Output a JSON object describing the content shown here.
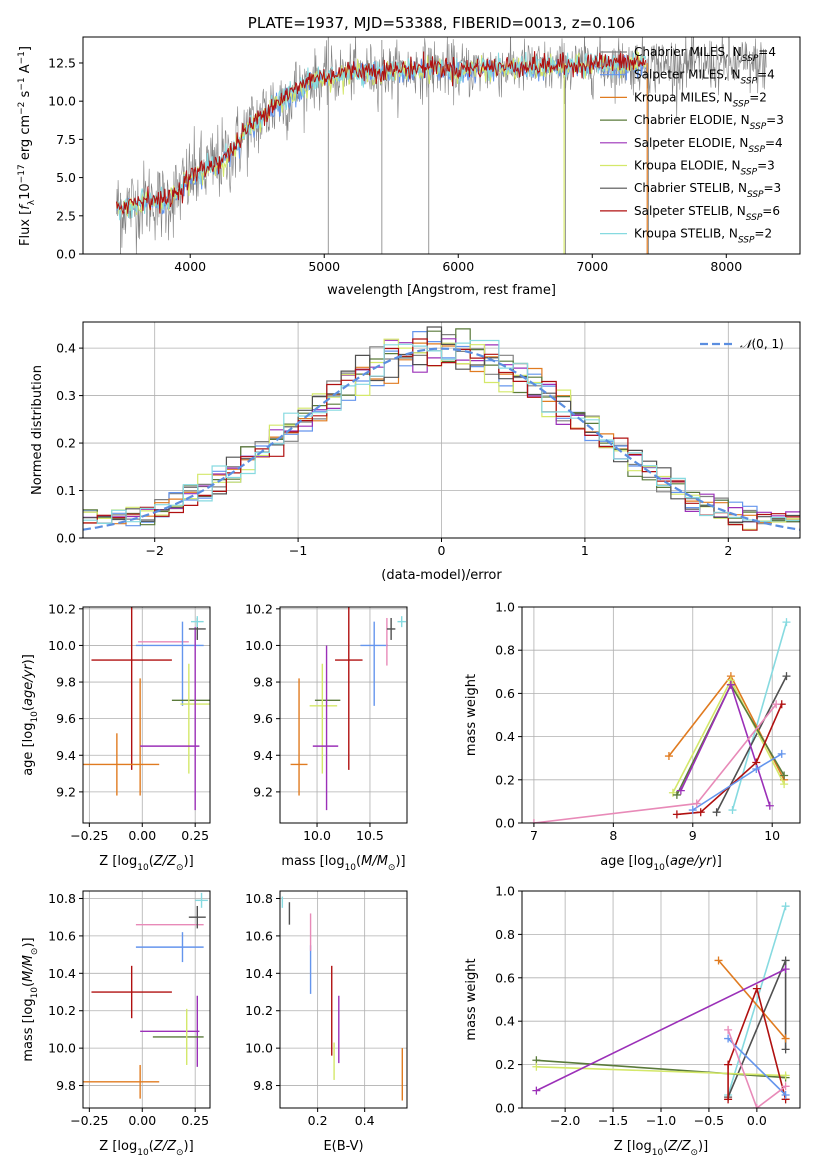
{
  "colors": {
    "chabrier_miles": "#808080",
    "salpeter_miles": "#6495ed",
    "kroupa_miles": "#e07b20",
    "chabrier_elodie": "#5a7a3a",
    "salpeter_elodie": "#9b30b8",
    "kroupa_elodie": "#d4e86a",
    "chabrier_stelib": "#505050",
    "salpeter_stelib": "#b01010",
    "kroupa_stelib": "#86dae0",
    "extra_pink": "#e88ab8",
    "normal_curve": "#5b8ee0"
  },
  "chart_data": [
    {
      "type": "line",
      "title": "PLATE=1937, MJD=53388, FIBERID=0013, z=0.106",
      "xlabel": "wavelength [Angstrom, rest frame]",
      "ylabel": "Flux [f_λ10^-17 erg cm^-2 s^-1 A^-1]",
      "xlim": [
        3200,
        8550
      ],
      "ylim": [
        0,
        14.2
      ],
      "xticks": [
        4000,
        5000,
        6000,
        7000,
        8000
      ],
      "yticks": [
        0.0,
        2.5,
        5.0,
        7.5,
        10.0,
        12.5
      ],
      "series": [
        {
          "name": "Chabrier MILES, N_SSP=4",
          "color": "#808080"
        },
        {
          "name": "Salpeter MILES, N_SSP=4",
          "color": "#6495ed"
        },
        {
          "name": "Kroupa MILES, N_SSP=2",
          "color": "#e07b20"
        },
        {
          "name": "Chabrier ELODIE, N_SSP=3",
          "color": "#5a7a3a"
        },
        {
          "name": "Salpeter ELODIE, N_SSP=4",
          "color": "#9b30b8"
        },
        {
          "name": "Kroupa ELODIE, N_SSP=3",
          "color": "#d4e86a"
        },
        {
          "name": "Chabrier STELIB, N_SSP=3",
          "color": "#505050"
        },
        {
          "name": "Salpeter STELIB, N_SSP=6",
          "color": "#b01010"
        },
        {
          "name": "Kroupa STELIB, N_SSP=2",
          "color": "#86dae0"
        }
      ],
      "continuum": {
        "x": [
          3450,
          3550,
          3700,
          3800,
          3900,
          4000,
          4100,
          4200,
          4300,
          4400,
          4600,
          4800,
          4900,
          5000,
          5200,
          5500,
          5800,
          6000,
          6200,
          6500,
          6800,
          7000,
          7300
        ],
        "y": [
          3.0,
          3.2,
          3.6,
          3.3,
          3.9,
          5.0,
          5.4,
          5.9,
          6.5,
          7.8,
          9.6,
          10.7,
          11.4,
          11.5,
          11.9,
          11.9,
          12.2,
          12.0,
          12.1,
          12.2,
          12.2,
          12.4,
          12.4
        ]
      },
      "data_x_range": [
        3450,
        8300
      ]
    },
    {
      "type": "line",
      "xlabel": "(data-model)/error",
      "ylabel": "Normed distribution",
      "xlim": [
        -2.5,
        2.5
      ],
      "ylim": [
        0,
        0.455
      ],
      "xticks": [
        -2,
        -1,
        0,
        1,
        2
      ],
      "yticks": [
        0.0,
        0.1,
        0.2,
        0.3,
        0.4
      ],
      "legend": "N(0,1)",
      "legend_position": "top-right",
      "bin_width": 0.1
    },
    {
      "type": "scatter",
      "xlabel": "Z [log10(Z/Z☉)]",
      "ylabel": "age [log10(age/yr)]",
      "xlim": [
        -0.28,
        0.32
      ],
      "ylim": [
        9.03,
        10.21
      ],
      "xticks": [
        -0.25,
        0.0,
        0.25
      ],
      "yticks": [
        9.2,
        9.4,
        9.6,
        9.8,
        10.0,
        10.2
      ],
      "errorbars": [
        {
          "x": -0.05,
          "y": 9.92,
          "xerr": 0.19,
          "yerr": 0.6,
          "color": "#b01010"
        },
        {
          "x": -0.12,
          "y": 9.35,
          "xerr": 0.2,
          "yerr": 0.17,
          "color": "#e07b20"
        },
        {
          "x": -0.01,
          "y": 9.5,
          "xerr": 0.0,
          "yerr": 0.32,
          "color": "#e07b20"
        },
        {
          "x": 0.1,
          "y": 10.02,
          "xerr": 0.12,
          "yerr": 0.0,
          "color": "#e88ab8"
        },
        {
          "x": 0.13,
          "y": 10.0,
          "xerr": 0.16,
          "yerr": 0.0,
          "color": "#6495ed"
        },
        {
          "x": 0.19,
          "y": 9.9,
          "xerr": 0.0,
          "yerr": 0.23,
          "color": "#6495ed"
        },
        {
          "x": 0.24,
          "y": 9.7,
          "xerr": 0.1,
          "yerr": 0.0,
          "color": "#5a7a3a"
        },
        {
          "x": 0.25,
          "y": 9.68,
          "xerr": 0.07,
          "yerr": 0.0,
          "color": "#d4e86a"
        },
        {
          "x": 0.22,
          "y": 9.6,
          "xerr": 0.0,
          "yerr": 0.3,
          "color": "#d4e86a"
        },
        {
          "x": 0.13,
          "y": 9.45,
          "xerr": 0.14,
          "yerr": 0.0,
          "color": "#9b30b8"
        },
        {
          "x": 0.25,
          "y": 9.6,
          "xerr": 0.0,
          "yerr": 0.5,
          "color": "#9b30b8"
        },
        {
          "x": 0.26,
          "y": 10.09,
          "xerr": 0.04,
          "yerr": 0.06,
          "color": "#505050"
        },
        {
          "x": 0.26,
          "y": 10.13,
          "xerr": 0.03,
          "yerr": 0.03,
          "color": "#86dae0"
        }
      ]
    },
    {
      "type": "scatter",
      "xlabel": "mass [log10(M/M☉)]",
      "xlim": [
        9.65,
        10.85
      ],
      "ylim": [
        9.03,
        10.21
      ],
      "xticks": [
        10.0,
        10.5
      ],
      "yticks": [
        9.2,
        9.4,
        9.6,
        9.8,
        10.0,
        10.2
      ],
      "errorbars": [
        {
          "x": 10.3,
          "y": 9.92,
          "xerr": 0.13,
          "yerr": 0.6,
          "color": "#b01010"
        },
        {
          "x": 9.83,
          "y": 9.35,
          "xerr": 0.08,
          "yerr": 0.0,
          "color": "#e07b20"
        },
        {
          "x": 9.83,
          "y": 9.5,
          "xerr": 0.0,
          "yerr": 0.32,
          "color": "#e07b20"
        },
        {
          "x": 10.1,
          "y": 9.7,
          "xerr": 0.12,
          "yerr": 0.0,
          "color": "#5a7a3a"
        },
        {
          "x": 10.06,
          "y": 9.67,
          "xerr": 0.13,
          "yerr": 0.0,
          "color": "#d4e86a"
        },
        {
          "x": 10.05,
          "y": 9.6,
          "xerr": 0.0,
          "yerr": 0.3,
          "color": "#d4e86a"
        },
        {
          "x": 10.08,
          "y": 9.45,
          "xerr": 0.12,
          "yerr": 0.0,
          "color": "#9b30b8"
        },
        {
          "x": 10.09,
          "y": 9.55,
          "xerr": 0.0,
          "yerr": 0.45,
          "color": "#9b30b8"
        },
        {
          "x": 10.54,
          "y": 10.0,
          "xerr": 0.13,
          "yerr": 0.0,
          "color": "#6495ed"
        },
        {
          "x": 10.54,
          "y": 9.9,
          "xerr": 0.0,
          "yerr": 0.23,
          "color": "#6495ed"
        },
        {
          "x": 10.66,
          "y": 10.02,
          "xerr": 0.0,
          "yerr": 0.13,
          "color": "#e88ab8"
        },
        {
          "x": 10.7,
          "y": 10.09,
          "xerr": 0.04,
          "yerr": 0.06,
          "color": "#505050"
        },
        {
          "x": 10.8,
          "y": 10.13,
          "xerr": 0.04,
          "yerr": 0.03,
          "color": "#86dae0"
        }
      ]
    },
    {
      "type": "line",
      "xlabel": "age [log10(age/yr)]",
      "ylabel": "mass weight",
      "xlim": [
        6.85,
        10.35
      ],
      "ylim": [
        0,
        1.0
      ],
      "xticks": [
        7,
        8,
        9,
        10
      ],
      "yticks": [
        0.0,
        0.2,
        0.4,
        0.6,
        0.8,
        1.0
      ],
      "series": [
        {
          "color": "#86dae0",
          "x": [
            9.5,
            10.18
          ],
          "y": [
            0.06,
            0.93
          ]
        },
        {
          "color": "#505050",
          "x": [
            9.3,
            10.18
          ],
          "y": [
            0.05,
            0.68
          ]
        },
        {
          "color": "#e07b20",
          "x": [
            8.7,
            9.48,
            10.15
          ],
          "y": [
            0.31,
            0.68,
            0.2
          ]
        },
        {
          "color": "#d4e86a",
          "x": [
            8.75,
            9.48,
            10.15
          ],
          "y": [
            0.14,
            0.66,
            0.18
          ]
        },
        {
          "color": "#5a7a3a",
          "x": [
            8.8,
            9.48,
            10.15
          ],
          "y": [
            0.13,
            0.64,
            0.22
          ]
        },
        {
          "color": "#9b30b8",
          "x": [
            8.85,
            9.48,
            9.97
          ],
          "y": [
            0.15,
            0.64,
            0.08
          ]
        },
        {
          "color": "#b01010",
          "x": [
            8.8,
            9.1,
            9.8,
            10.12
          ],
          "y": [
            0.04,
            0.05,
            0.28,
            0.55
          ]
        },
        {
          "color": "#6495ed",
          "x": [
            9.0,
            9.8,
            10.12
          ],
          "y": [
            0.06,
            0.25,
            0.32
          ]
        },
        {
          "color": "#e88ab8",
          "x": [
            7.0,
            9.05,
            10.05
          ],
          "y": [
            0.0,
            0.09,
            0.55
          ]
        }
      ]
    },
    {
      "type": "scatter",
      "xlabel": "Z [log10(Z/Z☉)]",
      "ylabel": "mass [log10(M/M☉)]",
      "xlim": [
        -0.28,
        0.32
      ],
      "ylim": [
        9.68,
        10.84
      ],
      "xticks": [
        -0.25,
        0.0,
        0.25
      ],
      "yticks": [
        9.8,
        10.0,
        10.2,
        10.4,
        10.6,
        10.8
      ],
      "errorbars": [
        {
          "x": -0.05,
          "y": 10.3,
          "xerr": 0.19,
          "yerr": 0.14,
          "color": "#b01010"
        },
        {
          "x": -0.12,
          "y": 9.82,
          "xerr": 0.2,
          "yerr": 0.0,
          "color": "#e07b20"
        },
        {
          "x": -0.01,
          "y": 9.82,
          "xerr": 0.0,
          "yerr": 0.09,
          "color": "#e07b20"
        },
        {
          "x": 0.13,
          "y": 10.66,
          "xerr": 0.16,
          "yerr": 0.0,
          "color": "#e88ab8"
        },
        {
          "x": 0.13,
          "y": 10.54,
          "xerr": 0.16,
          "yerr": 0.0,
          "color": "#6495ed"
        },
        {
          "x": 0.19,
          "y": 10.54,
          "xerr": 0.0,
          "yerr": 0.08,
          "color": "#6495ed"
        },
        {
          "x": 0.13,
          "y": 10.09,
          "xerr": 0.14,
          "yerr": 0.0,
          "color": "#9b30b8"
        },
        {
          "x": 0.26,
          "y": 10.09,
          "xerr": 0.0,
          "yerr": 0.19,
          "color": "#9b30b8"
        },
        {
          "x": 0.17,
          "y": 10.06,
          "xerr": 0.12,
          "yerr": 0.0,
          "color": "#5a7a3a"
        },
        {
          "x": 0.21,
          "y": 10.06,
          "xerr": 0.0,
          "yerr": 0.15,
          "color": "#d4e86a"
        },
        {
          "x": 0.26,
          "y": 10.7,
          "xerr": 0.04,
          "yerr": 0.06,
          "color": "#505050"
        },
        {
          "x": 0.28,
          "y": 10.79,
          "xerr": 0.03,
          "yerr": 0.04,
          "color": "#86dae0"
        }
      ]
    },
    {
      "type": "scatter",
      "xlabel": "E(B-V)",
      "xlim": [
        0.04,
        0.58
      ],
      "ylim": [
        9.68,
        10.84
      ],
      "xticks": [
        0.2,
        0.4
      ],
      "yticks": [
        9.8,
        10.0,
        10.2,
        10.4,
        10.6,
        10.8
      ],
      "errorbars": [
        {
          "x": 0.26,
          "y": 10.2,
          "xerr": 0.0,
          "yerr": 0.24,
          "color": "#b01010"
        },
        {
          "x": 0.29,
          "y": 10.1,
          "xerr": 0.0,
          "yerr": 0.18,
          "color": "#9b30b8"
        },
        {
          "x": 0.27,
          "y": 9.93,
          "xerr": 0.0,
          "yerr": 0.1,
          "color": "#d4e86a"
        },
        {
          "x": 0.17,
          "y": 10.42,
          "xerr": 0.0,
          "yerr": 0.13,
          "color": "#6495ed"
        },
        {
          "x": 0.17,
          "y": 10.62,
          "xerr": 0.0,
          "yerr": 0.1,
          "color": "#e88ab8"
        },
        {
          "x": 0.08,
          "y": 10.72,
          "xerr": 0.0,
          "yerr": 0.06,
          "color": "#505050"
        },
        {
          "x": 0.05,
          "y": 10.78,
          "xerr": 0.0,
          "yerr": 0.03,
          "color": "#86dae0"
        },
        {
          "x": 0.56,
          "y": 9.86,
          "xerr": 0.0,
          "yerr": 0.14,
          "color": "#e07b20"
        }
      ]
    },
    {
      "type": "line",
      "xlabel": "Z [log10(Z/Z☉)]",
      "ylabel": "mass weight",
      "xlim": [
        -2.45,
        0.45
      ],
      "ylim": [
        0,
        1.0
      ],
      "xticks": [
        -2.0,
        -1.5,
        -1.0,
        -0.5,
        0.0
      ],
      "yticks": [
        0.0,
        0.2,
        0.4,
        0.6,
        0.8,
        1.0
      ],
      "series": [
        {
          "color": "#86dae0",
          "x": [
            -0.3,
            0.3
          ],
          "y": [
            0.06,
            0.93
          ]
        },
        {
          "color": "#505050",
          "x": [
            -0.3,
            0.3,
            0.3
          ],
          "y": [
            0.05,
            0.68,
            0.27
          ]
        },
        {
          "color": "#e07b20",
          "x": [
            -0.4,
            0.3
          ],
          "y": [
            0.68,
            0.32
          ]
        },
        {
          "color": "#5a7a3a",
          "x": [
            -2.3,
            0.3
          ],
          "y": [
            0.22,
            0.14
          ]
        },
        {
          "color": "#d4e86a",
          "x": [
            -2.3,
            0.3
          ],
          "y": [
            0.19,
            0.15
          ]
        },
        {
          "color": "#9b30b8",
          "x": [
            -2.3,
            0.3
          ],
          "y": [
            0.08,
            0.64
          ]
        },
        {
          "color": "#b01010",
          "x": [
            -0.3,
            -0.3,
            0.0,
            0.3
          ],
          "y": [
            0.04,
            0.2,
            0.55,
            0.04
          ]
        },
        {
          "color": "#6495ed",
          "x": [
            -0.3,
            0.3
          ],
          "y": [
            0.32,
            0.06
          ]
        },
        {
          "color": "#e88ab8",
          "x": [
            -0.3,
            0.0,
            0.3
          ],
          "y": [
            0.36,
            0.0,
            0.1
          ]
        }
      ]
    }
  ]
}
